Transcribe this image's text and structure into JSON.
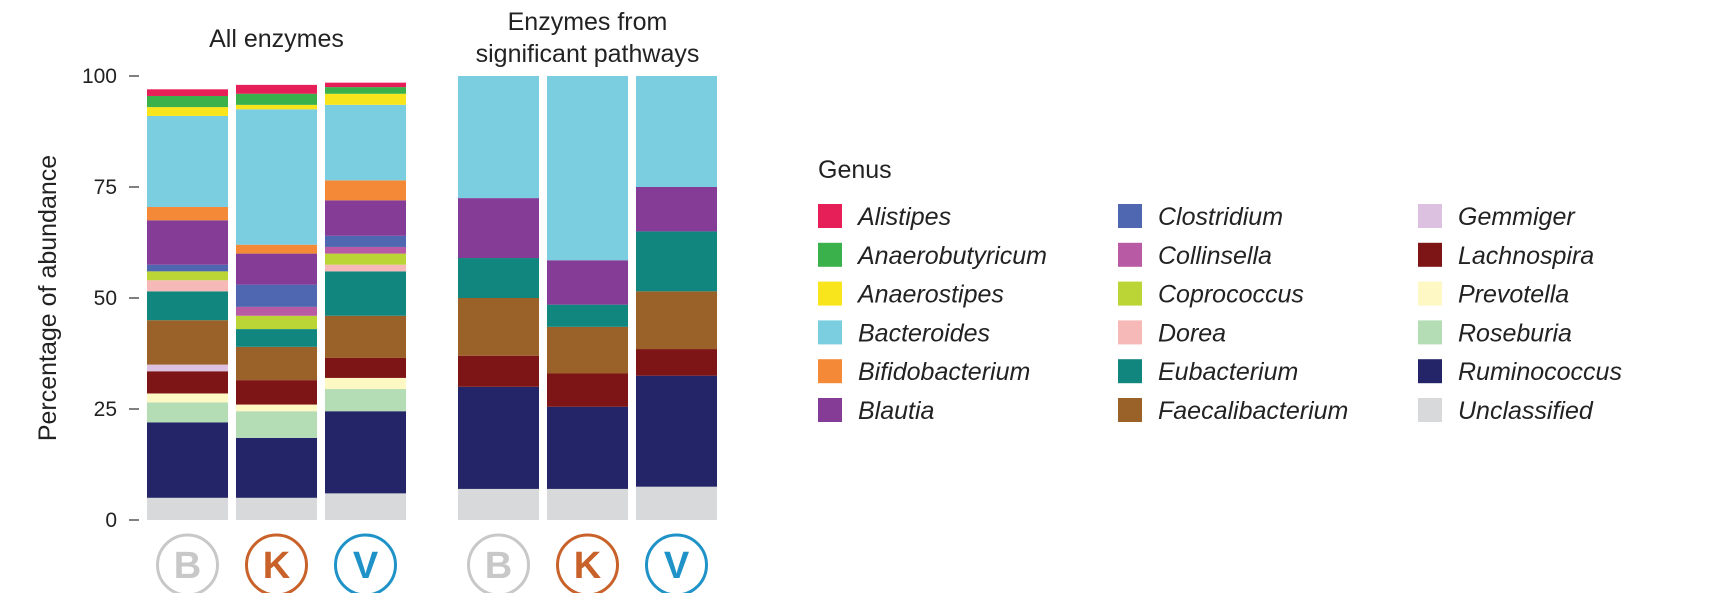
{
  "chart_data": {
    "type": "bar",
    "stacked": true,
    "ylabel": "Percentage of abundance",
    "ylim": [
      0,
      100
    ],
    "yticks": [
      "0",
      "25",
      "50",
      "75",
      "100"
    ],
    "legend_title": "Genus",
    "legend_position": "right",
    "genera": [
      {
        "name": "Unclassified",
        "color": "#d8d9da"
      },
      {
        "name": "Ruminococcus",
        "color": "#232568"
      },
      {
        "name": "Roseburia",
        "color": "#b5ddb5"
      },
      {
        "name": "Prevotella",
        "color": "#fdf8c4"
      },
      {
        "name": "Lachnospira",
        "color": "#7d1516"
      },
      {
        "name": "Gemmiger",
        "color": "#dcc1e0"
      },
      {
        "name": "Faecalibacterium",
        "color": "#9a6228"
      },
      {
        "name": "Eubacterium",
        "color": "#11867e"
      },
      {
        "name": "Dorea",
        "color": "#f6b9b7"
      },
      {
        "name": "Coprococcus",
        "color": "#bbd536"
      },
      {
        "name": "Collinsella",
        "color": "#b95aa5"
      },
      {
        "name": "Clostridium",
        "color": "#4e67b0"
      },
      {
        "name": "Blautia",
        "color": "#843c96"
      },
      {
        "name": "Bifidobacterium",
        "color": "#f48a37"
      },
      {
        "name": "Bacteroides",
        "color": "#7acee0"
      },
      {
        "name": "Anaerostipes",
        "color": "#f9e51c"
      },
      {
        "name": "Anaerobutyricum",
        "color": "#3ab14a"
      },
      {
        "name": "Alistipes",
        "color": "#e61f58"
      }
    ],
    "legend_columns": [
      [
        "Alistipes",
        "Anaerobutyricum",
        "Anaerostipes",
        "Bacteroides",
        "Bifidobacterium",
        "Blautia"
      ],
      [
        "Clostridium",
        "Collinsella",
        "Coprococcus",
        "Dorea",
        "Eubacterium",
        "Faecalibacterium"
      ],
      [
        "Gemmiger",
        "Lachnospira",
        "Prevotella",
        "Roseburia",
        "Ruminococcus",
        "Unclassified"
      ]
    ],
    "panels": [
      {
        "title_lines": [
          "All enzymes"
        ],
        "bars": [
          {
            "label": "B",
            "values": {
              "Unclassified": 5,
              "Ruminococcus": 17,
              "Roseburia": 4.5,
              "Prevotella": 2,
              "Lachnospira": 5,
              "Gemmiger": 1.5,
              "Faecalibacterium": 10,
              "Eubacterium": 6.5,
              "Dorea": 2.5,
              "Coprococcus": 2,
              "Collinsella": 0,
              "Clostridium": 1.5,
              "Blautia": 10,
              "Bifidobacterium": 3,
              "Bacteroides": 20.5,
              "Anaerostipes": 2,
              "Anaerobutyricum": 2.5,
              "Alistipes": 1.5
            }
          },
          {
            "label": "K",
            "values": {
              "Unclassified": 5,
              "Ruminococcus": 13.5,
              "Roseburia": 6,
              "Prevotella": 1.5,
              "Lachnospira": 5.5,
              "Gemmiger": 0,
              "Faecalibacterium": 7.5,
              "Eubacterium": 4,
              "Dorea": 0,
              "Coprococcus": 3,
              "Collinsella": 2,
              "Clostridium": 5,
              "Blautia": 7,
              "Bifidobacterium": 2,
              "Bacteroides": 30.5,
              "Anaerostipes": 1,
              "Anaerobutyricum": 2.5,
              "Alistipes": 2
            }
          },
          {
            "label": "V",
            "values": {
              "Unclassified": 6,
              "Ruminococcus": 18.5,
              "Roseburia": 5,
              "Prevotella": 2.5,
              "Lachnospira": 4.5,
              "Gemmiger": 0,
              "Faecalibacterium": 9.5,
              "Eubacterium": 10,
              "Dorea": 1.5,
              "Coprococcus": 2.5,
              "Collinsella": 1.5,
              "Clostridium": 2.5,
              "Blautia": 8,
              "Bifidobacterium": 4.5,
              "Bacteroides": 17,
              "Anaerostipes": 2.5,
              "Anaerobutyricum": 1.5,
              "Alistipes": 1
            }
          }
        ]
      },
      {
        "title_lines": [
          "Enzymes from",
          "significant pathways"
        ],
        "bars": [
          {
            "label": "B",
            "values": {
              "Unclassified": 7,
              "Ruminococcus": 23,
              "Lachnospira": 7,
              "Faecalibacterium": 13,
              "Eubacterium": 9,
              "Blautia": 13.5,
              "Bacteroides": 27.5
            }
          },
          {
            "label": "K",
            "values": {
              "Unclassified": 7,
              "Ruminococcus": 18.5,
              "Lachnospira": 7.5,
              "Faecalibacterium": 10.5,
              "Eubacterium": 5,
              "Blautia": 10,
              "Bacteroides": 41.5
            }
          },
          {
            "label": "V",
            "values": {
              "Unclassified": 7.5,
              "Ruminococcus": 25,
              "Lachnospira": 6,
              "Faecalibacterium": 13,
              "Eubacterium": 13.5,
              "Blautia": 10,
              "Bacteroides": 25
            }
          }
        ]
      }
    ],
    "badges": {
      "B": {
        "text": "B",
        "color": "#c8c8c8"
      },
      "K": {
        "text": "K",
        "color": "#c8622a"
      },
      "V": {
        "text": "V",
        "color": "#1f93c8"
      }
    }
  }
}
